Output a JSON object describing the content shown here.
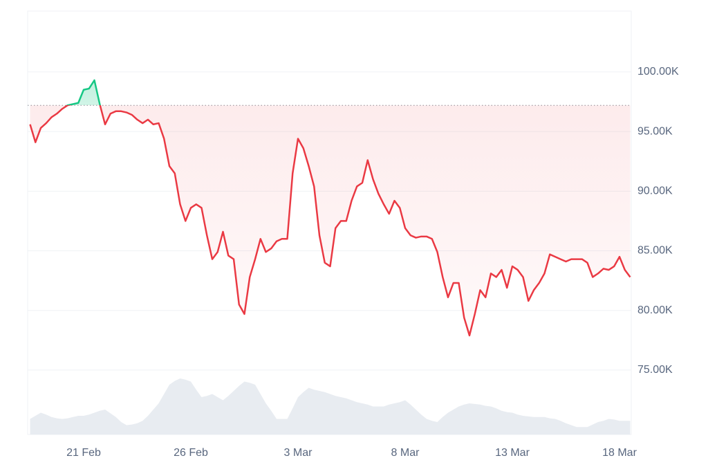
{
  "chart_data": {
    "type": "line",
    "baseline": 97200,
    "up_color": "#16c784",
    "down_color": "#ea3943",
    "grid": true,
    "categories": [
      null,
      null,
      null,
      null,
      null,
      null,
      null,
      null,
      null,
      null,
      "21 Feb",
      null,
      null,
      null,
      null,
      null,
      null,
      null,
      null,
      null,
      null,
      null,
      null,
      null,
      null,
      null,
      null,
      null,
      null,
      null,
      "26 Feb",
      null,
      null,
      null,
      null,
      null,
      null,
      null,
      null,
      null,
      null,
      null,
      null,
      null,
      null,
      null,
      null,
      null,
      null,
      null,
      "3 Mar",
      null,
      null,
      null,
      null,
      null,
      null,
      null,
      null,
      null,
      null,
      null,
      null,
      null,
      null,
      null,
      null,
      null,
      null,
      null,
      "8 Mar",
      null,
      null,
      null,
      null,
      null,
      null,
      null,
      null,
      null,
      null,
      null,
      null,
      null,
      null,
      null,
      null,
      null,
      null,
      null,
      "13 Mar",
      null,
      null,
      null,
      null,
      null,
      null,
      null,
      null,
      null,
      null,
      null,
      null,
      null,
      null,
      null,
      null,
      null,
      null,
      null,
      "18 Mar",
      null,
      null
    ],
    "series": [
      {
        "values": [
          95600,
          94100,
          95300,
          95700,
          96200,
          96500,
          96900,
          97200,
          97300,
          97400,
          98500,
          98600,
          99300,
          97300,
          95600,
          96500,
          96700,
          96700,
          96600,
          96400,
          96000,
          95700,
          96000,
          95600,
          95700,
          94400,
          92100,
          91500,
          88900,
          87500,
          88600,
          88900,
          88600,
          86300,
          84300,
          84900,
          86600,
          84600,
          84300,
          80500,
          79700,
          82800,
          84300,
          86000,
          84900,
          85200,
          85800,
          86000,
          86000,
          91500,
          94400,
          93600,
          92100,
          90400,
          86300,
          84000,
          83700,
          86900,
          87500,
          87500,
          89200,
          90400,
          90700,
          92600,
          91000,
          89800,
          88900,
          88100,
          89200,
          88600,
          86900,
          86300,
          86100,
          86200,
          86200,
          86000,
          84900,
          82800,
          81100,
          82300,
          82300,
          79400,
          77900,
          79700,
          81700,
          81100,
          83100,
          82800,
          83400,
          81900,
          83700,
          83400,
          82800,
          80800,
          81700,
          82300,
          83100,
          84700,
          84500,
          84300,
          84100,
          84300,
          84300,
          84300,
          84000,
          82800,
          83100,
          83500,
          83400,
          83700,
          84500,
          83400,
          82800
        ]
      },
      {
        "type": "area",
        "color": "#e8ecf1",
        "values": [
          25,
          30,
          35,
          32,
          28,
          26,
          25,
          26,
          28,
          30,
          30,
          32,
          35,
          38,
          40,
          34,
          28,
          20,
          15,
          16,
          18,
          22,
          30,
          40,
          50,
          65,
          80,
          86,
          90,
          88,
          85,
          72,
          60,
          62,
          65,
          60,
          55,
          62,
          70,
          78,
          85,
          83,
          80,
          65,
          50,
          38,
          25,
          25,
          25,
          42,
          60,
          68,
          75,
          72,
          70,
          68,
          65,
          62,
          60,
          58,
          55,
          52,
          50,
          48,
          45,
          45,
          45,
          48,
          50,
          52,
          55,
          48,
          40,
          32,
          25,
          22,
          20,
          28,
          35,
          40,
          45,
          48,
          50,
          49,
          48,
          46,
          45,
          42,
          38,
          36,
          35,
          32,
          30,
          29,
          28,
          28,
          28,
          26,
          25,
          22,
          18,
          15,
          12,
          12,
          12,
          16,
          20,
          22,
          25,
          24,
          22,
          22,
          22
        ]
      }
    ],
    "ylim": [
      69600,
      105100
    ],
    "yticks": [
      {
        "value": 75000,
        "label": "75.00K"
      },
      {
        "value": 80000,
        "label": "80.00K"
      },
      {
        "value": 85000,
        "label": "85.00K"
      },
      {
        "value": 90000,
        "label": "90.00K"
      },
      {
        "value": 95000,
        "label": "95.00K"
      },
      {
        "value": 100000,
        "label": "100.00K"
      }
    ]
  }
}
